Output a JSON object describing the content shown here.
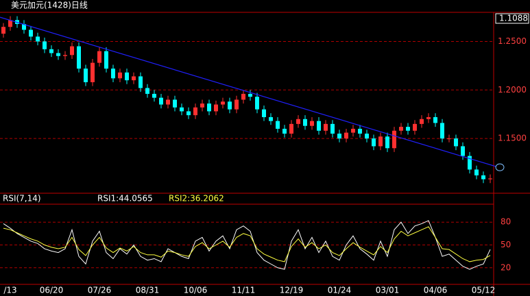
{
  "chart_data": [
    {
      "type": "candlestick",
      "title": "美元加元(1428)日线",
      "categories": [
        null,
        "/13",
        null,
        null,
        null,
        null,
        null,
        "06/20",
        null,
        null,
        null,
        null,
        null,
        null,
        "07/26",
        null,
        null,
        null,
        null,
        null,
        null,
        "08/31",
        null,
        null,
        null,
        null,
        null,
        null,
        "10/06",
        null,
        null,
        null,
        null,
        null,
        null,
        "11/11",
        null,
        null,
        null,
        null,
        null,
        null,
        "12/19",
        null,
        null,
        null,
        null,
        null,
        null,
        "01/24",
        null,
        null,
        null,
        null,
        null,
        null,
        "03/01",
        null,
        null,
        null,
        null,
        null,
        null,
        "04/06",
        null,
        null,
        null,
        null,
        null,
        null,
        "05/12",
        null
      ],
      "open": [
        1.258,
        1.265,
        1.272,
        1.268,
        1.262,
        1.255,
        1.25,
        1.242,
        1.238,
        1.235,
        1.236,
        1.245,
        1.222,
        1.208,
        1.228,
        1.24,
        1.222,
        1.212,
        1.218,
        1.21,
        1.214,
        1.202,
        1.196,
        1.192,
        1.185,
        1.19,
        1.182,
        1.178,
        1.174,
        1.182,
        1.186,
        1.178,
        1.185,
        1.188,
        1.18,
        1.19,
        1.196,
        1.193,
        1.18,
        1.172,
        1.168,
        1.16,
        1.155,
        1.165,
        1.17,
        1.163,
        1.168,
        1.158,
        1.165,
        1.155,
        1.15,
        1.156,
        1.16,
        1.155,
        1.15,
        1.142,
        1.152,
        1.14,
        1.158,
        1.162,
        1.158,
        1.165,
        1.17,
        1.172,
        1.166,
        1.15,
        1.15,
        1.142,
        1.132,
        1.118,
        1.112,
        1.108
      ],
      "high": [
        1.269,
        1.276,
        1.276,
        1.272,
        1.266,
        1.259,
        1.254,
        1.246,
        1.242,
        1.24,
        1.249,
        1.249,
        1.226,
        1.232,
        1.244,
        1.244,
        1.226,
        1.222,
        1.222,
        1.218,
        1.218,
        1.206,
        1.2,
        1.196,
        1.194,
        1.194,
        1.186,
        1.182,
        1.186,
        1.19,
        1.19,
        1.189,
        1.192,
        1.192,
        1.194,
        1.2,
        1.2,
        1.197,
        1.184,
        1.176,
        1.172,
        1.164,
        1.169,
        1.174,
        1.174,
        1.172,
        1.172,
        1.169,
        1.169,
        1.159,
        1.16,
        1.164,
        1.164,
        1.159,
        1.154,
        1.156,
        1.156,
        1.162,
        1.166,
        1.166,
        1.169,
        1.174,
        1.176,
        1.176,
        1.17,
        1.154,
        1.154,
        1.146,
        1.136,
        1.122,
        1.116,
        1.113
      ],
      "low": [
        1.254,
        1.261,
        1.264,
        1.258,
        1.251,
        1.246,
        1.238,
        1.234,
        1.231,
        1.231,
        1.232,
        1.218,
        1.204,
        1.204,
        1.224,
        1.218,
        1.208,
        1.208,
        1.206,
        1.206,
        1.198,
        1.192,
        1.188,
        1.181,
        1.181,
        1.178,
        1.174,
        1.17,
        1.17,
        1.178,
        1.174,
        1.174,
        1.181,
        1.176,
        1.176,
        1.186,
        1.189,
        1.176,
        1.168,
        1.164,
        1.156,
        1.151,
        1.151,
        1.161,
        1.159,
        1.159,
        1.154,
        1.154,
        1.151,
        1.146,
        1.146,
        1.152,
        1.151,
        1.146,
        1.138,
        1.138,
        1.136,
        1.136,
        1.154,
        1.154,
        1.154,
        1.161,
        1.166,
        1.162,
        1.146,
        1.146,
        1.138,
        1.128,
        1.114,
        1.108,
        1.104,
        1.104
      ],
      "close": [
        1.265,
        1.272,
        1.268,
        1.262,
        1.255,
        1.25,
        1.242,
        1.238,
        1.235,
        1.236,
        1.245,
        1.222,
        1.208,
        1.228,
        1.24,
        1.222,
        1.212,
        1.218,
        1.21,
        1.214,
        1.202,
        1.196,
        1.192,
        1.185,
        1.19,
        1.182,
        1.178,
        1.174,
        1.182,
        1.186,
        1.178,
        1.185,
        1.188,
        1.18,
        1.19,
        1.196,
        1.193,
        1.18,
        1.172,
        1.168,
        1.16,
        1.155,
        1.165,
        1.17,
        1.163,
        1.168,
        1.158,
        1.165,
        1.155,
        1.15,
        1.156,
        1.16,
        1.155,
        1.15,
        1.142,
        1.152,
        1.14,
        1.158,
        1.162,
        1.158,
        1.165,
        1.17,
        1.172,
        1.166,
        1.15,
        1.15,
        1.142,
        1.132,
        1.118,
        1.112,
        1.108,
        1.1088
      ],
      "last_label": "1.1088",
      "up_color": "#ff3030",
      "down_color": "#00ffff",
      "trendline": {
        "x": [
          -0.5,
          71.9
        ],
        "values": [
          1.275,
          1.121
        ],
        "color": "#2020ff"
      },
      "ylim": [
        1.095,
        1.28
      ],
      "yticks": [
        {
          "value": 1.15,
          "label": "1.1500"
        },
        {
          "value": 1.2,
          "label": "1.2000"
        },
        {
          "value": 1.25,
          "label": "1.2500"
        }
      ],
      "grid": true
    },
    {
      "type": "line",
      "title": "RSI(7,14)",
      "series": [
        {
          "name": "RSI1:44.0565",
          "color": "#ffffff",
          "values": [
            78,
            72,
            65,
            60,
            55,
            52,
            45,
            42,
            40,
            45,
            70,
            35,
            25,
            55,
            68,
            40,
            32,
            45,
            38,
            50,
            35,
            30,
            32,
            28,
            45,
            40,
            35,
            32,
            55,
            60,
            42,
            55,
            62,
            45,
            70,
            75,
            68,
            40,
            30,
            25,
            20,
            18,
            55,
            70,
            45,
            60,
            40,
            55,
            35,
            30,
            50,
            62,
            45,
            38,
            30,
            55,
            35,
            70,
            80,
            65,
            75,
            78,
            82,
            60,
            35,
            38,
            30,
            22,
            18,
            22,
            25,
            44.0565
          ]
        },
        {
          "name": "RSI2:36.2062",
          "color": "#ffff40",
          "values": [
            72,
            70,
            66,
            62,
            58,
            55,
            50,
            47,
            45,
            47,
            60,
            44,
            36,
            50,
            60,
            46,
            40,
            46,
            42,
            48,
            40,
            37,
            37,
            34,
            42,
            40,
            37,
            35,
            48,
            53,
            45,
            50,
            55,
            47,
            60,
            65,
            62,
            45,
            38,
            34,
            30,
            28,
            48,
            58,
            47,
            53,
            45,
            50,
            40,
            36,
            45,
            53,
            47,
            42,
            37,
            48,
            40,
            58,
            68,
            62,
            66,
            70,
            74,
            60,
            45,
            44,
            38,
            32,
            28,
            30,
            31,
            36.2062
          ]
        }
      ],
      "ylim": [
        0,
        100
      ],
      "yticks": [
        20,
        50,
        80
      ],
      "grid": true
    }
  ]
}
